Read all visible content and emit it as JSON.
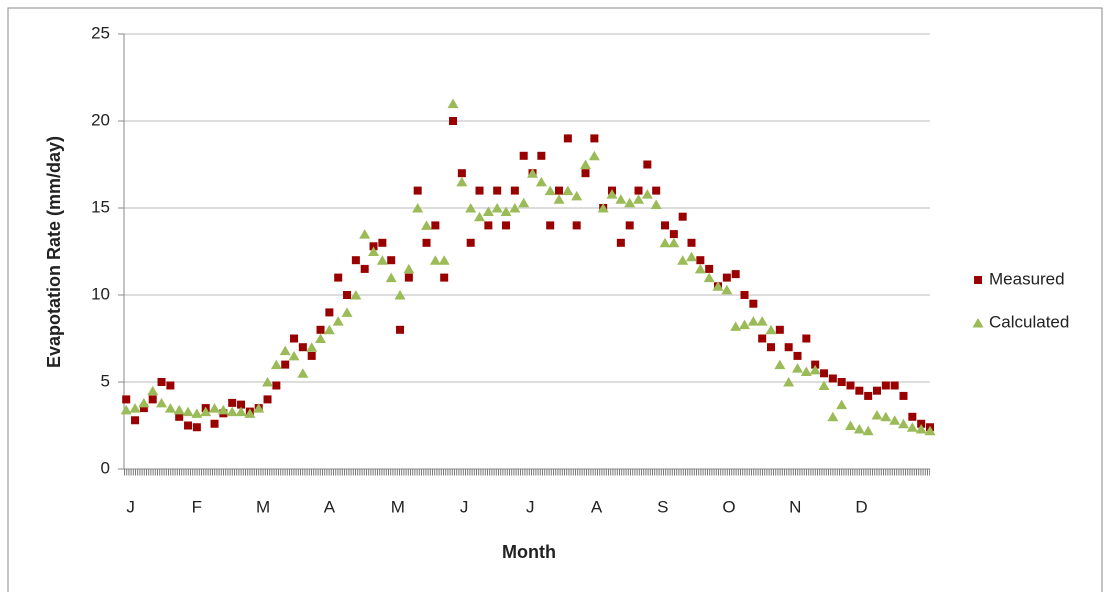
{
  "chart_data": {
    "type": "scatter",
    "x_label": "Month",
    "y_label": "Evapotation Rate (mm/day)",
    "x": [
      1,
      5,
      9,
      13,
      17,
      21,
      25,
      29,
      33,
      37,
      41,
      45,
      49,
      53,
      57,
      61,
      65,
      69,
      73,
      77,
      81,
      85,
      89,
      93,
      97,
      101,
      105,
      109,
      113,
      117,
      121,
      125,
      129,
      133,
      137,
      141,
      145,
      149,
      153,
      157,
      161,
      165,
      169,
      173,
      177,
      181,
      185,
      189,
      193,
      197,
      201,
      205,
      209,
      213,
      217,
      221,
      225,
      229,
      233,
      237,
      241,
      245,
      249,
      253,
      257,
      261,
      265,
      269,
      273,
      277,
      281,
      285,
      289,
      293,
      297,
      301,
      305,
      309,
      313,
      317,
      321,
      325,
      329,
      333,
      337,
      341,
      345,
      349,
      353,
      357,
      361,
      365
    ],
    "series": [
      {
        "name": "Measured",
        "color": "#990000",
        "marker": "square",
        "values": [
          4.0,
          2.8,
          3.5,
          4.0,
          5.0,
          4.8,
          3.0,
          2.5,
          2.4,
          3.5,
          2.6,
          3.2,
          3.8,
          3.7,
          3.3,
          3.5,
          4.0,
          4.8,
          6.0,
          7.5,
          7.0,
          6.5,
          8.0,
          9.0,
          11.0,
          10.0,
          12.0,
          11.5,
          12.8,
          13.0,
          12.0,
          8.0,
          11.0,
          16.0,
          13.0,
          14.0,
          11.0,
          20.0,
          17.0,
          13.0,
          16,
          14,
          16,
          14,
          16,
          18,
          17,
          18,
          14,
          16,
          19,
          14,
          17,
          19,
          15,
          16,
          13,
          14,
          16,
          17.5,
          16,
          14,
          13.5,
          14.5,
          13,
          12,
          11.5,
          10.5,
          11,
          11.2,
          10,
          9.5,
          7.5,
          7,
          8,
          7,
          6.5,
          7.5,
          6,
          5.5,
          5.2,
          5,
          4.8,
          4.5,
          4.2,
          4.5,
          4.8,
          4.8,
          4.2,
          3.0,
          2.6,
          2.4
        ]
      },
      {
        "name": "Calculated",
        "color": "#9bbb59",
        "marker": "triangle",
        "values": [
          3.4,
          3.5,
          3.8,
          4.5,
          3.8,
          3.5,
          3.4,
          3.3,
          3.2,
          3.3,
          3.5,
          3.4,
          3.3,
          3.3,
          3.2,
          3.5,
          5.0,
          6.0,
          6.8,
          6.5,
          5.5,
          7,
          7.5,
          8,
          8.5,
          9,
          10,
          13.5,
          12.5,
          12,
          11,
          10,
          11.5,
          15,
          14,
          12,
          12,
          21,
          16.5,
          15,
          14.5,
          14.8,
          15,
          14.8,
          15,
          15.3,
          17,
          16.5,
          16,
          15.5,
          16,
          15.7,
          17.5,
          18,
          15,
          15.8,
          15.5,
          15.3,
          15.5,
          15.8,
          15.2,
          13,
          13,
          12,
          12.2,
          11.5,
          11,
          10.5,
          10.3,
          8.2,
          8.3,
          8.5,
          8.5,
          8,
          6,
          5,
          5.8,
          5.6,
          5.7,
          4.8,
          3,
          3.7,
          2.5,
          2.3,
          2.2,
          3.1,
          3,
          2.8,
          2.6,
          2.4,
          2.3,
          2.2
        ]
      }
    ],
    "xlim": [
      0,
      365
    ],
    "xticks": [
      {
        "value": 3,
        "label": "J"
      },
      {
        "value": 33,
        "label": "F"
      },
      {
        "value": 63,
        "label": "M"
      },
      {
        "value": 93,
        "label": "A"
      },
      {
        "value": 124,
        "label": "M"
      },
      {
        "value": 154,
        "label": "J"
      },
      {
        "value": 184,
        "label": "J"
      },
      {
        "value": 214,
        "label": "A"
      },
      {
        "value": 244,
        "label": "S"
      },
      {
        "value": 274,
        "label": "O"
      },
      {
        "value": 304,
        "label": "N"
      },
      {
        "value": 334,
        "label": "D"
      }
    ],
    "ylim": [
      0,
      25
    ],
    "yticks": [
      0,
      5,
      10,
      15,
      20,
      25
    ],
    "grid": true,
    "legend": "right"
  }
}
